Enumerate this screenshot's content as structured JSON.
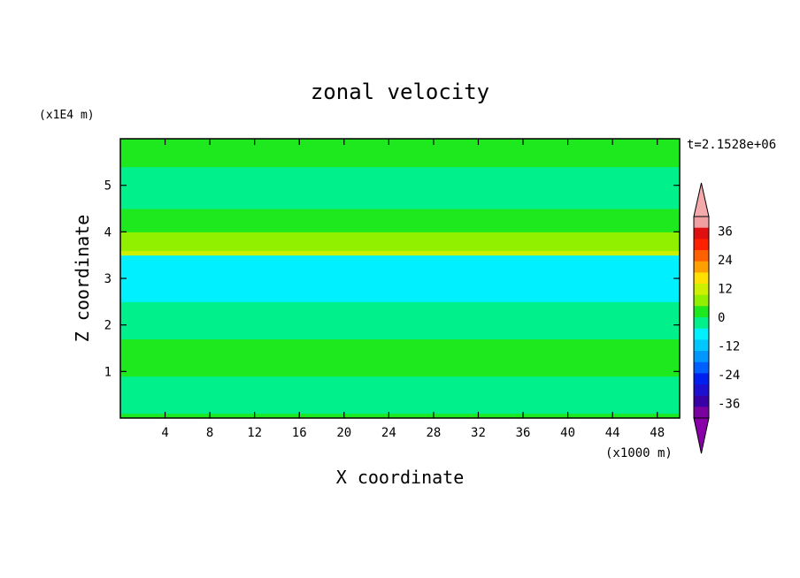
{
  "chart_data": {
    "type": "heatmap",
    "title": "zonal velocity",
    "xlabel": "X coordinate",
    "ylabel": "Z coordinate",
    "x_unit": "(x1000 m)",
    "y_unit": "(x1E4 m)",
    "time_label": "t=2.1528e+06",
    "xlim": [
      0,
      50
    ],
    "ylim": [
      0,
      6
    ],
    "x_ticks": [
      "4",
      "8",
      "12",
      "16",
      "20",
      "24",
      "28",
      "32",
      "36",
      "40",
      "44",
      "48"
    ],
    "y_ticks": [
      "1",
      "2",
      "3",
      "4",
      "5"
    ],
    "colorbar": {
      "labels": [
        "36",
        "24",
        "12",
        "0",
        "-12",
        "-24",
        "-36"
      ],
      "levels": [
        -42,
        -36,
        -30,
        -24,
        -18,
        -12,
        -6,
        0,
        6,
        12,
        18,
        24,
        30,
        36,
        42
      ],
      "colors": [
        "#7a00a0",
        "#3a00a8",
        "#1e10d0",
        "#0020f0",
        "#0060ff",
        "#0098ff",
        "#00c8ff",
        "#00f0ff",
        "#00f08c",
        "#1ee81e",
        "#90f000",
        "#ccf000",
        "#ffe000",
        "#ffa000",
        "#ff6000",
        "#ff2000",
        "#e01010",
        "#f0a0a0"
      ],
      "under_color": "#8a00a8",
      "over_color": "#f4aaaa"
    },
    "field_bands": [
      {
        "z_from": 0.0,
        "z_to": 0.1,
        "value": 3,
        "color": "#1ee81e"
      },
      {
        "z_from": 0.1,
        "z_to": 0.9,
        "value": -3,
        "color": "#00f08c"
      },
      {
        "z_from": 0.9,
        "z_to": 1.7,
        "value": 3,
        "color": "#1ee81e"
      },
      {
        "z_from": 1.7,
        "z_to": 2.5,
        "value": -3,
        "color": "#00f08c"
      },
      {
        "z_from": 2.5,
        "z_to": 3.5,
        "value": -9,
        "color": "#00f0ff"
      },
      {
        "z_from": 3.5,
        "z_to": 3.6,
        "value": 10,
        "color": "#ccf000"
      },
      {
        "z_from": 3.6,
        "z_to": 4.0,
        "value": 8,
        "color": "#90f000"
      },
      {
        "z_from": 4.0,
        "z_to": 4.5,
        "value": 3,
        "color": "#1ee81e"
      },
      {
        "z_from": 4.5,
        "z_to": 5.4,
        "value": -3,
        "color": "#00f08c"
      },
      {
        "z_from": 5.4,
        "z_to": 6.0,
        "value": 3,
        "color": "#1ee81e"
      }
    ]
  }
}
